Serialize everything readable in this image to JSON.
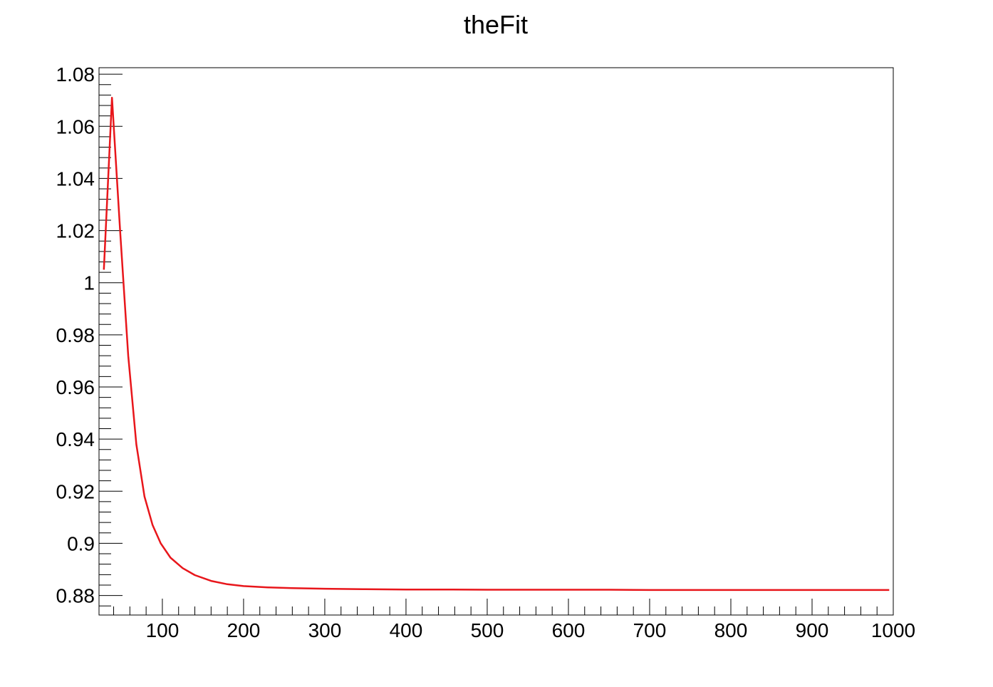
{
  "chart_data": {
    "type": "line",
    "title": "theFit",
    "xlabel": "",
    "ylabel": "",
    "xlim": [
      22,
      1000
    ],
    "ylim": [
      0.8725,
      1.0825
    ],
    "x_ticks": [
      100,
      200,
      300,
      400,
      500,
      600,
      700,
      800,
      900,
      1000
    ],
    "x_tick_labels": [
      "100",
      "200",
      "300",
      "400",
      "500",
      "600",
      "700",
      "800",
      "900",
      "1000"
    ],
    "y_ticks": [
      0.88,
      0.9,
      0.92,
      0.94,
      0.96,
      0.98,
      1.0,
      1.02,
      1.04,
      1.06,
      1.08
    ],
    "y_tick_labels": [
      "0.88",
      "0.9",
      "0.92",
      "0.94",
      "0.96",
      "0.98",
      "1",
      "1.02",
      "1.04",
      "1.06",
      "1.08"
    ],
    "grid": false,
    "series": [
      {
        "color": "#e8161b",
        "x": [
          28,
          38,
          48,
          58,
          68,
          78,
          88,
          98,
          110,
          125,
          140,
          160,
          180,
          200,
          230,
          260,
          300,
          350,
          400,
          450,
          500,
          550,
          600,
          650,
          700,
          750,
          800,
          850,
          900,
          950,
          995
        ],
        "y": [
          1.005,
          1.071,
          1.02,
          0.972,
          0.938,
          0.918,
          0.907,
          0.9,
          0.8945,
          0.8905,
          0.8878,
          0.8856,
          0.8843,
          0.8836,
          0.8831,
          0.8828,
          0.8826,
          0.8824,
          0.8823,
          0.8823,
          0.8822,
          0.8822,
          0.8822,
          0.8822,
          0.8821,
          0.8821,
          0.8821,
          0.8821,
          0.8821,
          0.8821,
          0.8821
        ]
      }
    ]
  }
}
